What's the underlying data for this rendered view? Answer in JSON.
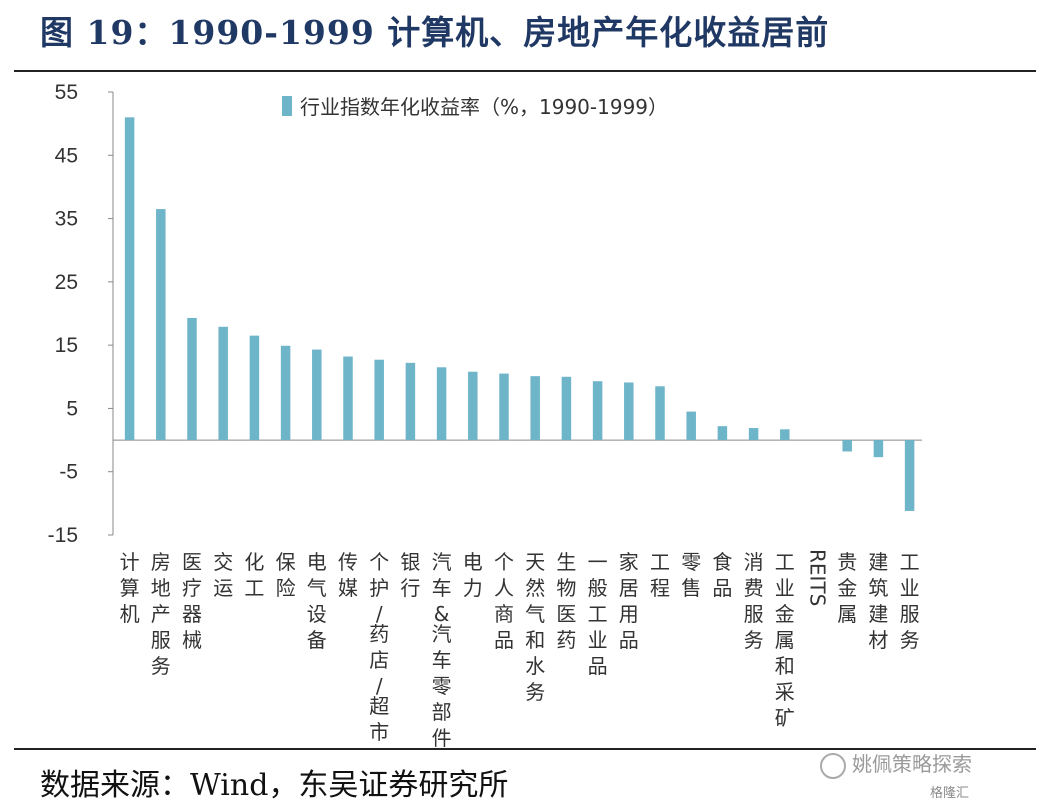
{
  "title": "图 19：1990-1999 计算机、房地产年化收益居前",
  "source": "数据来源：Wind，东吴证券研究所",
  "watermark": "姚佩策略探索",
  "watermark2": "格隆汇",
  "colors": {
    "bar": "#6fb5c9",
    "title": "#1f3864",
    "axis": "#888888"
  },
  "chart_data": {
    "type": "bar",
    "categories": [
      "计算机",
      "房地产服务",
      "医疗器械",
      "交运",
      "化工",
      "保险",
      "电气设备",
      "传媒",
      "个护/药店/超市",
      "银行",
      "汽车&汽车零部件",
      "电力",
      "个人商品",
      "天然气和水务",
      "生物医药",
      "一般工业品",
      "家居用品",
      "工程",
      "零售",
      "食品",
      "消费服务",
      "工业金属和采矿",
      "REITS",
      "贵金属",
      "建筑建材",
      "工业服务"
    ],
    "series": [
      {
        "name": "行业指数年化收益率（%，1990-1999）",
        "values": [
          51,
          36.5,
          19.3,
          17.9,
          16.5,
          14.9,
          14.3,
          13.2,
          12.7,
          12.2,
          11.5,
          10.8,
          10.5,
          10.1,
          10.0,
          9.3,
          9.1,
          8.5,
          4.5,
          2.2,
          1.9,
          1.7,
          0,
          -1.8,
          -2.7,
          -11.2
        ]
      }
    ],
    "yticks": [
      "55",
      "45",
      "35",
      "25",
      "15",
      "5",
      "-5",
      "-15"
    ],
    "ylim": [
      -15,
      55
    ],
    "legend_position": "top",
    "grid": false
  }
}
